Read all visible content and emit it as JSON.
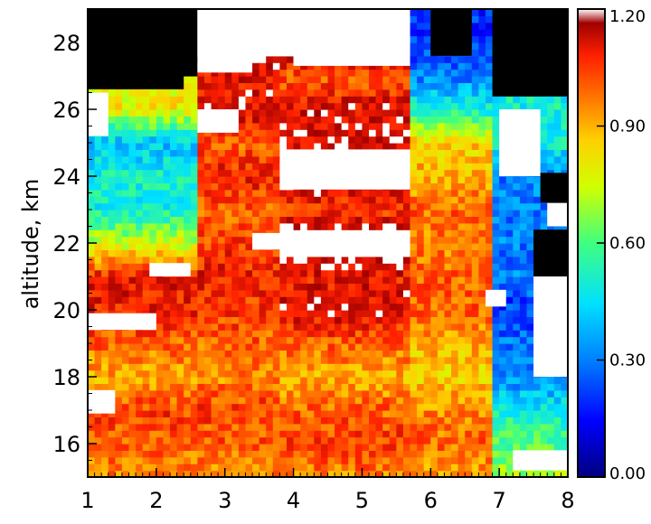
{
  "chart_data": {
    "type": "heatmap",
    "title": "",
    "xlabel": "",
    "ylabel": "altitude,  km",
    "xlim": [
      1,
      8
    ],
    "ylim": [
      15,
      29
    ],
    "x_ticks": [
      "1",
      "2",
      "3",
      "4",
      "5",
      "6",
      "7",
      "8"
    ],
    "y_ticks": [
      "16",
      "18",
      "20",
      "22",
      "24",
      "26",
      "28"
    ],
    "colorbar": {
      "range": [
        0.0,
        1.2
      ],
      "ticks": [
        "0.00",
        "0.30",
        "0.60",
        "0.90",
        "1.20"
      ],
      "colormap": "rainbow (dark blue → blue → cyan → green → yellow → orange → red → dark red)",
      "above_max_color": "#ffffff",
      "missing_color": "#000000"
    },
    "column_blocks": [
      {
        "x_range": [
          1.0,
          2.6
        ],
        "profile": [
          [
            15,
            0.95
          ],
          [
            16,
            1.0
          ],
          [
            17,
            1.05
          ],
          [
            18,
            0.9
          ],
          [
            19,
            1.0
          ],
          [
            20,
            1.1
          ],
          [
            21,
            1.1
          ],
          [
            22,
            0.75
          ],
          [
            23,
            0.5
          ],
          [
            24,
            0.5
          ],
          [
            25,
            0.4
          ],
          [
            26,
            0.8
          ],
          [
            26.6,
            0.8
          ],
          [
            29,
            null
          ]
        ]
      },
      {
        "x_range": [
          2.6,
          3.8
        ],
        "profile": [
          [
            15,
            0.95
          ],
          [
            16,
            1.0
          ],
          [
            17,
            1.05
          ],
          [
            18,
            0.95
          ],
          [
            19,
            1.0
          ],
          [
            20,
            1.05
          ],
          [
            21,
            1.1
          ],
          [
            22,
            1.05
          ],
          [
            23,
            1.0
          ],
          [
            24,
            1.1
          ],
          [
            25,
            1.0
          ],
          [
            26,
            1.15
          ],
          [
            27,
            1.1
          ],
          [
            28,
            1.3
          ],
          [
            29,
            1.3
          ]
        ]
      },
      {
        "x_range": [
          3.8,
          5.7
        ],
        "profile": [
          [
            15,
            0.95
          ],
          [
            16,
            1.05
          ],
          [
            17,
            1.0
          ],
          [
            18,
            0.9
          ],
          [
            19,
            1.0
          ],
          [
            20,
            1.15
          ],
          [
            21,
            1.1
          ],
          [
            22,
            1.3
          ],
          [
            23,
            1.05
          ],
          [
            24,
            1.2
          ],
          [
            25,
            1.15
          ],
          [
            26,
            1.15
          ],
          [
            27,
            1.0
          ],
          [
            28,
            1.3
          ],
          [
            29,
            1.3
          ]
        ]
      },
      {
        "x_range": [
          5.7,
          6.9
        ],
        "profile": [
          [
            15,
            0.9
          ],
          [
            16,
            1.0
          ],
          [
            17,
            0.95
          ],
          [
            18,
            0.85
          ],
          [
            19,
            0.9
          ],
          [
            20,
            1.0
          ],
          [
            21,
            1.0
          ],
          [
            22,
            0.95
          ],
          [
            23,
            1.0
          ],
          [
            24,
            0.9
          ],
          [
            25,
            0.85
          ],
          [
            26,
            0.5
          ],
          [
            27,
            0.3
          ],
          [
            28,
            0.2
          ],
          [
            29,
            0.2
          ]
        ]
      },
      {
        "x_range": [
          6.9,
          8.0
        ],
        "profile": [
          [
            15,
            0.7
          ],
          [
            16,
            0.6
          ],
          [
            17,
            0.5
          ],
          [
            18,
            0.3
          ],
          [
            19,
            0.3
          ],
          [
            20,
            0.2
          ],
          [
            21,
            0.3
          ],
          [
            22,
            0.3
          ],
          [
            23,
            0.3
          ],
          [
            24,
            0.3
          ],
          [
            25,
            0.5
          ],
          [
            26,
            0.5
          ],
          [
            27,
            null
          ],
          [
            29,
            null
          ]
        ]
      }
    ],
    "saturated_patches": [
      {
        "x": [
          1.0,
          1.4
        ],
        "y": [
          16.9,
          17.6
        ]
      },
      {
        "x": [
          1.0,
          2.0
        ],
        "y": [
          19.4,
          19.9
        ]
      },
      {
        "x": [
          1.9,
          2.5
        ],
        "y": [
          21.0,
          21.4
        ]
      },
      {
        "x": [
          1.0,
          1.3
        ],
        "y": [
          25.2,
          26.5
        ]
      },
      {
        "x": [
          2.6,
          3.2
        ],
        "y": [
          25.3,
          26.0
        ]
      },
      {
        "x": [
          2.6,
          3.4
        ],
        "y": [
          27.1,
          29.0
        ]
      },
      {
        "x": [
          4.0,
          5.7
        ],
        "y": [
          27.3,
          28.7
        ]
      },
      {
        "x": [
          3.8,
          5.7
        ],
        "y": [
          23.6,
          24.8
        ]
      },
      {
        "x": [
          3.4,
          5.7
        ],
        "y": [
          21.8,
          22.3
        ]
      },
      {
        "x": [
          6.8,
          7.1
        ],
        "y": [
          20.1,
          20.6
        ]
      },
      {
        "x": [
          7.0,
          7.6
        ],
        "y": [
          24.0,
          26.0
        ]
      },
      {
        "x": [
          7.5,
          8.0
        ],
        "y": [
          18.0,
          21.0
        ]
      },
      {
        "x": [
          7.7,
          8.0
        ],
        "y": [
          22.5,
          24.0
        ]
      },
      {
        "x": [
          7.2,
          8.0
        ],
        "y": [
          15.2,
          15.8
        ]
      }
    ],
    "missing_patches": [
      {
        "x": [
          1.0,
          2.4
        ],
        "y": [
          26.6,
          29.0
        ]
      },
      {
        "x": [
          7.4,
          8.0
        ],
        "y": [
          26.8,
          29.0
        ]
      },
      {
        "x": [
          7.5,
          8.0
        ],
        "y": [
          21.0,
          22.4
        ]
      },
      {
        "x": [
          7.6,
          8.0
        ],
        "y": [
          23.2,
          24.1
        ]
      },
      {
        "x": [
          6.0,
          6.6
        ],
        "y": [
          27.6,
          29.0
        ]
      }
    ]
  }
}
